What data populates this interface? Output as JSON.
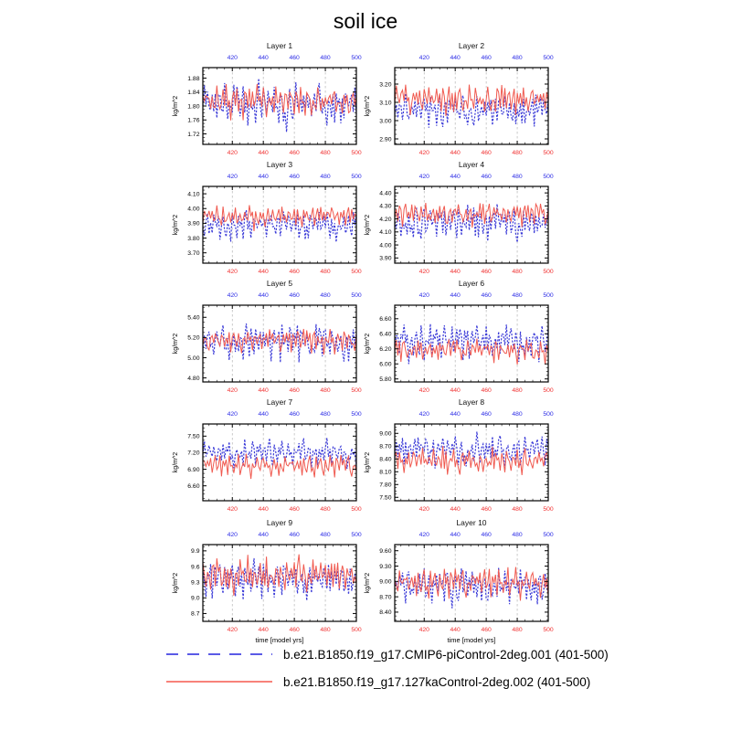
{
  "title": "soil ice",
  "colors": {
    "blue_line": "#3c3cd8",
    "red_line": "#f05a50",
    "blue_tick_label": "#2a2ae6",
    "red_tick_label": "#f03030",
    "grid": "#b4b4b4",
    "frame": "#000000",
    "legend_blue": "#5a5ae6",
    "legend_red": "#f8827a"
  },
  "legend": {
    "entries": [
      {
        "label": "b.e21.B1850.f19_g17.CMIP6-piControl-2deg.001 (401-500)",
        "color": "#5a5ae6",
        "style": "dashed"
      },
      {
        "label": "b.e21.B1850.f19_g17.127kaControl-2deg.002 (401-500)",
        "color": "#f8827a",
        "style": "solid"
      }
    ]
  },
  "chart_data": {
    "type": "line",
    "title": "soil ice",
    "xlabel": "time [model yrs]",
    "ylabel": "kg/m^2",
    "x_range": [
      401,
      500
    ],
    "x_ticks": [
      420,
      440,
      460,
      480,
      500
    ],
    "x_minor_step": 5,
    "x_gridlines": [
      420,
      440,
      460,
      480
    ],
    "series_names": [
      "b.e21.B1850.f19_g17.CMIP6-piControl-2deg.001",
      "b.e21.B1850.f19_g17.127kaControl-2deg.002"
    ],
    "waveforms": {
      "piControl": [
        0.1,
        0.62,
        -0.35,
        0.8,
        0.2,
        -0.6,
        0.45,
        -0.15,
        0.7,
        -0.8,
        0.3,
        0.55,
        -0.45,
        0.15,
        0.9,
        -0.25,
        -0.7,
        0.4,
        0.05,
        -0.5,
        0.65,
        -0.2,
        0.85,
        0.1,
        -0.9,
        0.35,
        0.6,
        -0.4,
        0.2,
        -0.75,
        0.5,
        0.0,
        -0.3,
        0.7,
        -0.55,
        0.25,
        0.95,
        -0.1,
        -0.65,
        0.45,
        0.15,
        -0.85,
        0.6,
        -0.05,
        0.35,
        -0.45,
        0.75,
        -0.25,
        0.1,
        -0.6,
        0.5,
        0.85,
        -0.35,
        0.05,
        -0.95,
        0.4,
        0.65,
        -0.15,
        -0.5,
        0.3,
        0.75,
        -0.4,
        0.1,
        0.55,
        -0.7,
        0.25,
        -0.05,
        0.8,
        -0.3,
        0.45,
        -0.85,
        0.2,
        0.6,
        -0.55,
        0.35,
        0.9,
        -0.2,
        -0.45,
        0.65,
        0.0,
        -0.75,
        0.5,
        0.15,
        -0.35,
        0.8,
        -0.6,
        0.25,
        -0.1,
        0.7,
        -0.5,
        0.4,
        -0.9,
        0.3,
        0.6,
        -0.25,
        0.05,
        0.45,
        -0.65,
        0.85,
        -0.4
      ],
      "ka127": [
        -0.2,
        0.4,
        0.75,
        -0.5,
        0.1,
        0.6,
        -0.35,
        0.85,
        -0.15,
        0.3,
        -0.7,
        0.5,
        0.05,
        -0.45,
        0.8,
        0.25,
        -0.6,
        0.15,
        0.65,
        -0.3,
        0.9,
        -0.1,
        0.45,
        -0.75,
        0.2,
        0.55,
        -0.25,
        0.7,
        -0.5,
        0.35,
        0.0,
        -0.85,
        0.6,
        0.3,
        -0.4,
        0.75,
        -0.2,
        0.5,
        -0.65,
        0.1,
        0.85,
        -0.35,
        0.25,
        -0.55,
        0.65,
        0.05,
        -0.8,
        0.4,
        0.7,
        -0.25,
        0.15,
        -0.6,
        0.9,
        -0.45,
        0.3,
        0.55,
        -0.15,
        -0.7,
        0.45,
        0.2,
        -0.5,
        0.8,
        -0.05,
        0.35,
        -0.9,
        0.6,
        0.1,
        -0.4,
        0.7,
        -0.3,
        0.5,
        -0.65,
        0.25,
        0.95,
        -0.2,
        -0.55,
        0.4,
        0.05,
        -0.75,
        0.65,
        0.3,
        -0.45,
        0.8,
        -0.1,
        0.5,
        -0.6,
        0.2,
        0.75,
        -0.35,
        0.1,
        0.6,
        -0.85,
        0.45,
        -0.05,
        0.35,
        -0.5,
        0.7,
        -0.25,
        0.55,
        -0.4
      ]
    },
    "layers": [
      {
        "title": "Layer 1",
        "ylim": [
          1.69,
          1.91
        ],
        "yticks": [
          1.72,
          1.76,
          1.8,
          1.84,
          1.88
        ],
        "ytick_labels": [
          "1.72",
          "1.76",
          "1.80",
          "1.84",
          "1.88"
        ],
        "series": [
          {
            "name": "piControl",
            "mean": 1.8,
            "amp": 0.065,
            "shift": 0
          },
          {
            "name": "127kaControl",
            "mean": 1.81,
            "amp": 0.05,
            "shift": 5
          }
        ]
      },
      {
        "title": "Layer 2",
        "ylim": [
          2.87,
          3.29
        ],
        "yticks": [
          2.9,
          3.0,
          3.1,
          3.2
        ],
        "ytick_labels": [
          "2.90",
          "3.00",
          "3.10",
          "3.20"
        ],
        "series": [
          {
            "name": "piControl",
            "mean": 3.05,
            "amp": 0.1,
            "shift": 7
          },
          {
            "name": "127kaControl",
            "mean": 3.11,
            "amp": 0.08,
            "shift": 13
          }
        ]
      },
      {
        "title": "Layer 3",
        "ylim": [
          3.63,
          4.15
        ],
        "yticks": [
          3.7,
          3.8,
          3.9,
          4.0,
          4.1
        ],
        "ytick_labels": [
          "3.70",
          "3.80",
          "3.90",
          "4.00",
          "4.10"
        ],
        "series": [
          {
            "name": "piControl",
            "mean": 3.88,
            "amp": 0.11,
            "shift": 23
          },
          {
            "name": "127kaControl",
            "mean": 3.94,
            "amp": 0.08,
            "shift": 31
          }
        ]
      },
      {
        "title": "Layer 4",
        "ylim": [
          3.86,
          4.45
        ],
        "yticks": [
          3.9,
          4.0,
          4.1,
          4.2,
          4.3,
          4.4
        ],
        "ytick_labels": [
          "3.90",
          "4.00",
          "4.10",
          "4.20",
          "4.30",
          "4.40"
        ],
        "series": [
          {
            "name": "piControl",
            "mean": 4.16,
            "amp": 0.14,
            "shift": 37
          },
          {
            "name": "127kaControl",
            "mean": 4.23,
            "amp": 0.1,
            "shift": 41
          }
        ]
      },
      {
        "title": "Layer 5",
        "ylim": [
          4.76,
          5.52
        ],
        "yticks": [
          4.8,
          5.0,
          5.2,
          5.4
        ],
        "ytick_labels": [
          "4.80",
          "5.00",
          "5.20",
          "5.40"
        ],
        "series": [
          {
            "name": "piControl",
            "mean": 5.14,
            "amp": 0.2,
            "shift": 47
          },
          {
            "name": "127kaControl",
            "mean": 5.16,
            "amp": 0.13,
            "shift": 53
          }
        ]
      },
      {
        "title": "Layer 6",
        "ylim": [
          5.76,
          6.78
        ],
        "yticks": [
          5.8,
          6.0,
          6.2,
          6.4,
          6.6
        ],
        "ytick_labels": [
          "5.80",
          "6.00",
          "6.20",
          "6.40",
          "6.60"
        ],
        "series": [
          {
            "name": "piControl",
            "mean": 6.28,
            "amp": 0.26,
            "shift": 61
          },
          {
            "name": "127kaControl",
            "mean": 6.17,
            "amp": 0.16,
            "shift": 67
          }
        ]
      },
      {
        "title": "Layer 7",
        "ylim": [
          6.33,
          7.72
        ],
        "yticks": [
          6.6,
          6.9,
          7.2,
          7.5
        ],
        "ytick_labels": [
          "6.60",
          "6.90",
          "7.20",
          "7.50"
        ],
        "series": [
          {
            "name": "piControl",
            "mean": 7.17,
            "amp": 0.26,
            "shift": 71
          },
          {
            "name": "127kaControl",
            "mean": 6.95,
            "amp": 0.22,
            "shift": 79
          }
        ]
      },
      {
        "title": "Layer 8",
        "ylim": [
          7.42,
          9.22
        ],
        "yticks": [
          7.5,
          7.8,
          8.1,
          8.4,
          8.7,
          9.0
        ],
        "ytick_labels": [
          "7.50",
          "7.80",
          "8.10",
          "8.40",
          "8.70",
          "9.00"
        ],
        "series": [
          {
            "name": "piControl",
            "mean": 8.58,
            "amp": 0.38,
            "shift": 83
          },
          {
            "name": "127kaControl",
            "mean": 8.33,
            "amp": 0.33,
            "shift": 89
          }
        ]
      },
      {
        "title": "Layer 9",
        "ylim": [
          8.55,
          10.02
        ],
        "yticks": [
          8.7,
          9.0,
          9.3,
          9.6,
          9.9
        ],
        "ytick_labels": [
          "8.7",
          "9.0",
          "9.3",
          "9.6",
          "9.9"
        ],
        "series": [
          {
            "name": "piControl",
            "mean": 9.33,
            "amp": 0.36,
            "shift": 3
          },
          {
            "name": "127kaControl",
            "mean": 9.4,
            "amp": 0.37,
            "shift": 11
          }
        ]
      },
      {
        "title": "Layer 10",
        "ylim": [
          8.22,
          9.72
        ],
        "yticks": [
          8.4,
          8.7,
          9.0,
          9.3,
          9.6
        ],
        "ytick_labels": [
          "8.40",
          "8.70",
          "9.00",
          "9.30",
          "9.60"
        ],
        "series": [
          {
            "name": "piControl",
            "mean": 8.88,
            "amp": 0.36,
            "shift": 17
          },
          {
            "name": "127kaControl",
            "mean": 8.95,
            "amp": 0.32,
            "shift": 29
          }
        ]
      }
    ]
  }
}
